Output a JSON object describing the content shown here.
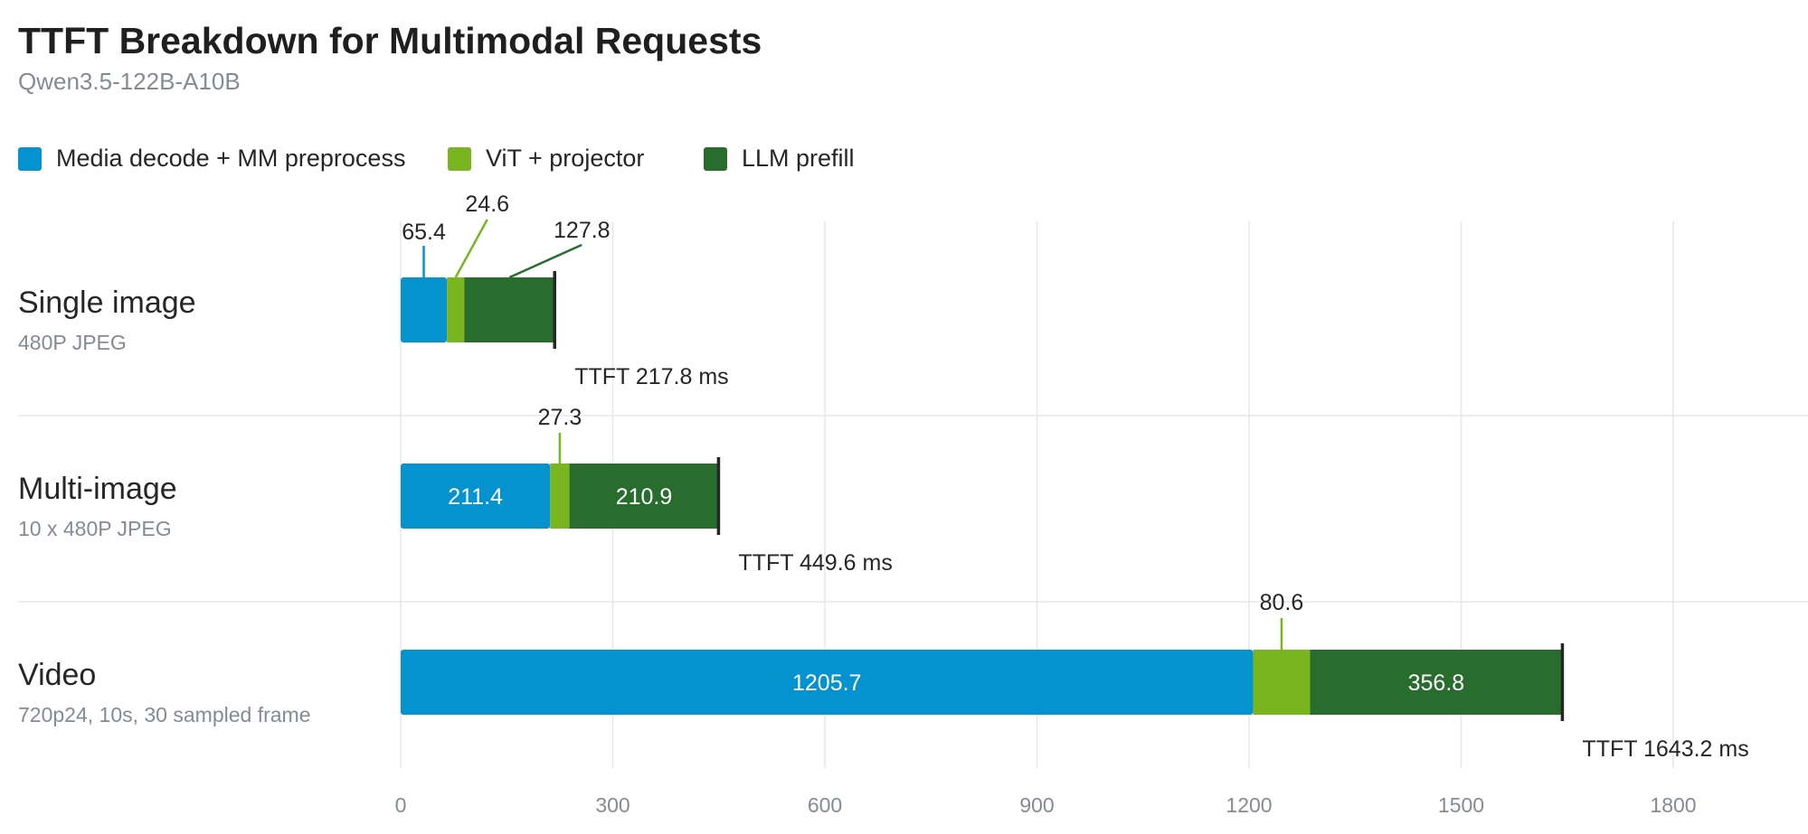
{
  "title": "TTFT Breakdown for Multimodal Requests",
  "subtitle": "Qwen3.5-122B-A10B",
  "colors": {
    "media": "#0593cf",
    "vit": "#78b51f",
    "llm": "#286d2e",
    "marker": "#262626",
    "grid": "#e6e7e9",
    "tick": "#858b93"
  },
  "chart_data": {
    "type": "bar",
    "orientation": "horizontal",
    "stacked": true,
    "title": "TTFT Breakdown for Multimodal Requests",
    "subtitle": "Qwen3.5-122B-A10B",
    "categories": [
      {
        "label": "Single image",
        "sublabel": "480P JPEG"
      },
      {
        "label": "Multi-image",
        "sublabel": "10 x 480P JPEG"
      },
      {
        "label": "Video",
        "sublabel": "720p24, 10s, 30 sampled frame"
      }
    ],
    "series": [
      {
        "name": "Media decode + MM preprocess",
        "color": "#0593cf",
        "values": [
          65.4,
          211.4,
          1205.7
        ]
      },
      {
        "name": "ViT + projector",
        "color": "#78b51f",
        "values": [
          24.6,
          27.3,
          80.6
        ]
      },
      {
        "name": "LLM prefill",
        "color": "#286d2e",
        "values": [
          127.8,
          210.9,
          356.8
        ]
      }
    ],
    "segment_label_text": [
      [
        "65.4",
        "24.6",
        "127.8"
      ],
      [
        "211.4",
        "27.3",
        "210.9"
      ],
      [
        "1205.7",
        "80.6",
        "356.8"
      ]
    ],
    "segment_label_inside": [
      [
        false,
        false,
        false
      ],
      [
        true,
        false,
        true
      ],
      [
        true,
        false,
        true
      ]
    ],
    "totals": [
      217.8,
      449.6,
      1643.2
    ],
    "total_labels": [
      "TTFT 217.8 ms",
      "TTFT 449.6 ms",
      "TTFT 1643.2 ms"
    ],
    "xlim": [
      0,
      1980
    ],
    "xticks": [
      0,
      300,
      600,
      900,
      1200,
      1500,
      1800
    ],
    "xtick_labels": [
      "0",
      "300",
      "600",
      "900",
      "1200",
      "1500",
      "1800"
    ],
    "grid": true,
    "legend_position": "top-left"
  }
}
